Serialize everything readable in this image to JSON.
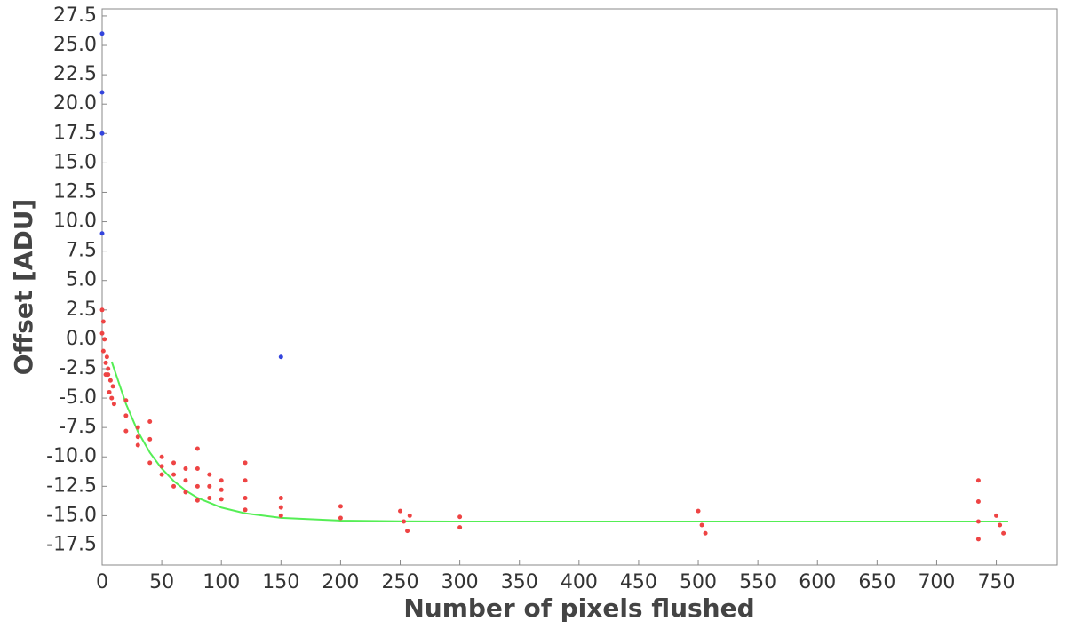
{
  "chart_data": {
    "type": "scatter",
    "x_label": "Number of pixels flushed",
    "y_label": "Offset [ADU]",
    "xlim": [
      0,
      801
    ],
    "ylim": [
      -19.2,
      28.1
    ],
    "xticks": [
      0,
      50,
      100,
      150,
      200,
      250,
      300,
      350,
      400,
      450,
      500,
      550,
      600,
      650,
      700,
      750
    ],
    "yticks": [
      -17.5,
      {
        "value": -15,
        "label": "-15.0"
      },
      -12.5,
      {
        "value": -10,
        "label": "-10.0"
      },
      -7.5,
      {
        "value": -5,
        "label": "-5.0"
      },
      -2.5,
      {
        "value": 0,
        "label": "0.0"
      },
      2.5,
      {
        "value": 5,
        "label": "5.0"
      },
      7.5,
      {
        "value": 10,
        "label": "10.0"
      },
      12.5,
      {
        "value": 15,
        "label": "15.0"
      },
      17.5,
      {
        "value": 20,
        "label": "20.0"
      },
      22.5,
      {
        "value": 25,
        "label": "25.0"
      },
      27.5
    ],
    "series": [
      {
        "type": "line",
        "color": "#55ee55",
        "x": [
          8,
          10,
          20,
          30,
          40,
          50,
          60,
          70,
          80,
          100,
          120,
          150,
          200,
          250,
          300,
          760
        ],
        "values": [
          -1.9,
          -2.5,
          -5.5,
          -7.85,
          -9.63,
          -11.0,
          -12.05,
          -12.86,
          -13.48,
          -14.31,
          -14.8,
          -15.19,
          -15.42,
          -15.48,
          -15.5,
          -15.5
        ]
      },
      {
        "type": "scatter",
        "color": "#ee4444",
        "x": [
          0,
          0,
          1,
          1,
          2,
          3,
          4,
          5,
          6,
          7,
          8,
          9,
          10,
          3,
          5,
          20,
          20,
          20,
          30,
          30,
          30,
          40,
          40,
          40,
          50,
          50,
          50,
          60,
          60,
          60,
          70,
          70,
          70,
          80,
          80,
          80,
          80,
          90,
          90,
          90,
          100,
          100,
          100,
          120,
          120,
          120,
          120,
          150,
          150,
          150,
          200,
          200,
          250,
          253,
          256,
          258,
          300,
          300,
          500,
          503,
          506,
          735,
          735,
          735,
          735,
          750,
          753,
          756
        ],
        "values": [
          2.5,
          0.5,
          1.5,
          -1,
          0,
          -2,
          -1.5,
          -3,
          -4.5,
          -3.5,
          -5,
          -4,
          -5.5,
          -3,
          -2.5,
          -5.2,
          -6.5,
          -7.8,
          -7.5,
          -8.3,
          -9,
          -7,
          -8.5,
          -10.5,
          -10,
          -10.8,
          -11.5,
          -10.5,
          -11.5,
          -12.5,
          -11,
          -12,
          -13,
          -9.3,
          -11,
          -12.5,
          -13.7,
          -11.5,
          -12.5,
          -13.5,
          -12,
          -12.8,
          -13.6,
          -10.5,
          -12,
          -13.5,
          -14.5,
          -13.5,
          -14.3,
          -15,
          -14.2,
          -15.2,
          -14.6,
          -15.5,
          -16.3,
          -15,
          -15.1,
          -16,
          -14.6,
          -15.8,
          -16.5,
          -12,
          -13.8,
          -15.5,
          -17,
          -15,
          -15.8,
          -16.5
        ]
      },
      {
        "type": "scatter",
        "color": "#3344dd",
        "x": [
          0,
          0,
          0,
          0,
          150
        ],
        "values": [
          26,
          21,
          17.5,
          9,
          -1.5
        ]
      }
    ]
  }
}
